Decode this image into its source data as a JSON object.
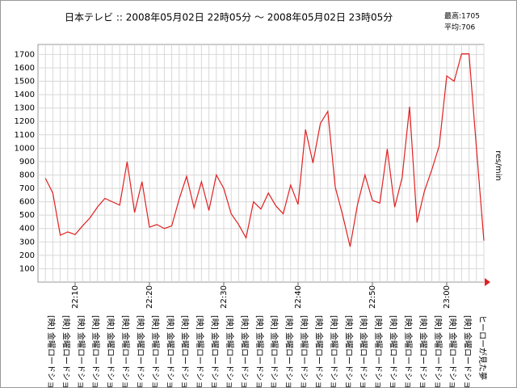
{
  "chart_data": {
    "type": "line",
    "title": "日本テレビ :: 2008年05月02日 22時05分 〜 2008年05月02日 23時05分",
    "stats": [
      "最高:1705",
      "平均:706"
    ],
    "ylabel": "res/min",
    "x": [
      "22:06",
      "22:07",
      "22:08",
      "22:09",
      "22:10",
      "22:11",
      "22:12",
      "22:13",
      "22:14",
      "22:15",
      "22:16",
      "22:17",
      "22:18",
      "22:19",
      "22:20",
      "22:21",
      "22:22",
      "22:23",
      "22:24",
      "22:25",
      "22:26",
      "22:27",
      "22:28",
      "22:29",
      "22:30",
      "22:31",
      "22:32",
      "22:33",
      "22:34",
      "22:35",
      "22:36",
      "22:37",
      "22:38",
      "22:39",
      "22:40",
      "22:41",
      "22:42",
      "22:43",
      "22:44",
      "22:45",
      "22:46",
      "22:47",
      "22:48",
      "22:49",
      "22:50",
      "22:51",
      "22:52",
      "22:53",
      "22:54",
      "22:55",
      "22:56",
      "22:57",
      "22:58",
      "22:59",
      "23:00",
      "23:01",
      "23:02",
      "23:03",
      "23:04",
      "23:05"
    ],
    "series": [
      {
        "name": "res/min",
        "color": "#e02020",
        "values": [
          775,
          665,
          350,
          375,
          355,
          420,
          480,
          560,
          625,
          600,
          575,
          900,
          520,
          750,
          410,
          430,
          400,
          420,
          620,
          790,
          555,
          750,
          535,
          800,
          700,
          510,
          430,
          330,
          600,
          545,
          665,
          570,
          510,
          725,
          580,
          1140,
          890,
          1185,
          1275,
          710,
          500,
          265,
          580,
          800,
          610,
          590,
          995,
          560,
          780,
          1310,
          445,
          680,
          840,
          1020,
          1540,
          1500,
          1705,
          1705,
          1000,
          310
        ]
      }
    ],
    "xlim": [
      "22:05",
      "23:05"
    ],
    "xticks": [
      "22:10",
      "22:20",
      "22:30",
      "22:40",
      "22:50",
      "23:00"
    ],
    "ylim": [
      0,
      1775
    ],
    "yticks": [
      100,
      200,
      300,
      400,
      500,
      600,
      700,
      800,
      900,
      1000,
      1100,
      1200,
      1300,
      1400,
      1500,
      1600,
      1700
    ],
    "grid": true,
    "program_labels": [
      "[映] 金曜ロードショ",
      "[映] 金曜ロードショ",
      "[映] 金曜ロードショ",
      "[映] 金曜ロードショ",
      "[映] 金曜ロードショ",
      "[映] 金曜ロードショ",
      "[映] 金曜ロードショ",
      "[映] 金曜ロードショ",
      "[映] 金曜ロードショ",
      "[映] 金曜ロードショ",
      "[映] 金曜ロードショ",
      "[映] 金曜ロードショ",
      "[映] 金曜ロードショ",
      "[映] 金曜ロードショ",
      "[映] 金曜ロードショ",
      "[映] 金曜ロードショ",
      "[映] 金曜ロードショ",
      "[映] 金曜ロードショ",
      "[映] 金曜ロードショ",
      "[映] 金曜ロードショ",
      "[映] 金曜ロードショ",
      "[映] 金曜ロードショ",
      "[映] 金曜ロードショ",
      "[映] 金曜ロードショ",
      "[映] 金曜ロードショ",
      "[映] 金曜ロードショ",
      "[映] 金曜ロードショ",
      "[映] 金曜ロードショ",
      "[映] 金曜ロードショ",
      "ヒーローが見た夢"
    ]
  }
}
